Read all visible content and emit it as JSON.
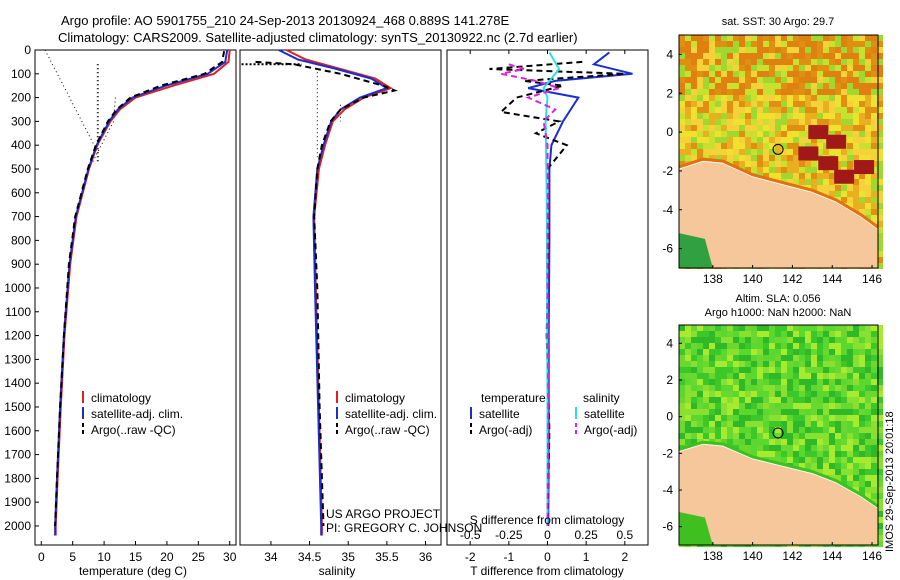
{
  "header": {
    "line1": "Argo profile: AO 5901755_210 24-Sep-2013 20130924_468 0.889S 141.278E",
    "line2": "Climatology: CARS2009. Satellite-adjusted climatology: synTS_20130922.nc (2.7d earlier)"
  },
  "footer": {
    "project": "US ARGO PROJECT",
    "pi": "PI: GREGORY C. JOHNSON",
    "stamp": "IMOS 29-Sep-2013 20:01:18"
  },
  "colors": {
    "climatology": "#e02020",
    "satellite": "#1a2fd0",
    "argo": "#000000",
    "sat_salinity": "#2de0e0",
    "argo_salinity": "#e020e0"
  },
  "chart_data": [
    {
      "type": "line",
      "id": "temperature",
      "xlabel": "temperature (deg C)",
      "ylabel": "depth",
      "xlim": [
        -1,
        31
      ],
      "ylim": [
        2080,
        0
      ],
      "xticks": [
        0,
        5,
        10,
        15,
        20,
        25,
        30
      ],
      "yticks": [
        0,
        100,
        200,
        300,
        400,
        500,
        600,
        700,
        800,
        900,
        1000,
        1100,
        1200,
        1300,
        1400,
        1500,
        1600,
        1700,
        1800,
        1900,
        2000
      ],
      "legend": [
        "climatology",
        "satellite-adj. clim.",
        "Argo(..raw -QC)"
      ],
      "series": [
        {
          "name": "climatology",
          "depth": [
            0,
            50,
            100,
            150,
            200,
            250,
            300,
            400,
            500,
            700,
            900,
            1200,
            1500,
            1800,
            2000,
            2040
          ],
          "values": [
            30,
            29.8,
            27.5,
            21,
            15,
            12.5,
            11,
            8.9,
            7.6,
            5.6,
            4.6,
            3.7,
            3.1,
            2.6,
            2.3,
            2.3
          ]
        },
        {
          "name": "satellite-adj. clim.",
          "depth": [
            0,
            50,
            100,
            150,
            200,
            250,
            300,
            400,
            500,
            700,
            900,
            1200,
            1500,
            1800,
            2000,
            2040
          ],
          "values": [
            29.6,
            29.3,
            26.5,
            19.8,
            14.5,
            12.2,
            10.8,
            8.8,
            7.5,
            5.5,
            4.5,
            3.6,
            3.0,
            2.5,
            2.2,
            2.2
          ]
        },
        {
          "name": "Argo(..raw -QC)",
          "depth": [
            5,
            50,
            100,
            150,
            200,
            250,
            300,
            400,
            500,
            700,
            900,
            1200,
            1500,
            1800,
            2000
          ],
          "values": [
            29.1,
            28.8,
            26,
            19,
            14.2,
            12,
            10.6,
            8.7,
            7.4,
            5.4,
            4.4,
            3.6,
            3.0,
            2.5,
            2.2
          ]
        }
      ]
    },
    {
      "type": "line",
      "id": "salinity",
      "xlabel": "salinity",
      "xlim": [
        33.6,
        36.2
      ],
      "ylim": [
        2080,
        0
      ],
      "xticks": [
        34,
        34.5,
        35,
        35.5,
        36
      ],
      "xtick_labels": [
        "34",
        "34.5",
        "35",
        "35.5",
        "36"
      ],
      "legend": [
        "climatology",
        "satellite-adj. clim.",
        "Argo(..raw -QC)"
      ],
      "series": [
        {
          "name": "climatology",
          "depth": [
            0,
            40,
            80,
            120,
            160,
            200,
            250,
            300,
            400,
            500,
            700,
            1000,
            1500,
            2000,
            2040
          ],
          "values": [
            34.2,
            34.45,
            34.9,
            35.35,
            35.55,
            35.2,
            34.95,
            34.8,
            34.7,
            34.62,
            34.56,
            34.58,
            34.62,
            34.66,
            34.66
          ]
        },
        {
          "name": "satellite-adj. clim.",
          "depth": [
            0,
            40,
            80,
            120,
            160,
            200,
            250,
            300,
            400,
            500,
            700,
            1000,
            1500,
            2000,
            2040
          ],
          "values": [
            34.1,
            34.35,
            34.85,
            35.3,
            35.5,
            35.15,
            34.9,
            34.78,
            34.68,
            34.6,
            34.55,
            34.57,
            34.61,
            34.65,
            34.65
          ]
        },
        {
          "name": "Argo(..raw -QC)",
          "depth": [
            50,
            60,
            100,
            150,
            170,
            200,
            250,
            300,
            400,
            500,
            700,
            1000,
            1500,
            2000
          ],
          "values": [
            33.8,
            34.3,
            34.9,
            35.45,
            35.6,
            35.2,
            34.9,
            34.77,
            34.66,
            34.6,
            34.56,
            34.6,
            34.63,
            34.68
          ]
        }
      ]
    },
    {
      "type": "line",
      "id": "difference",
      "xlabel": "T difference from climatology",
      "xlabel_s": "S difference from climatology",
      "xlim": [
        -2.6,
        2.6
      ],
      "ylim": [
        2080,
        0
      ],
      "xticks": [
        -2,
        -1,
        0,
        1,
        2
      ],
      "xticks_s": [
        -0.5,
        -0.25,
        0,
        0.25,
        0.5
      ],
      "xtick_labels_s": [
        "-0.5",
        "-0.25",
        "0",
        "0.25",
        "0.5"
      ],
      "legend_t_title": "temperature",
      "legend_s_title": "salinity",
      "legend": [
        "satellite",
        "Argo(-adj)",
        "satellite",
        "Argo(-adj)"
      ],
      "series": [
        {
          "name": "T satellite",
          "depth": [
            10,
            60,
            100,
            130,
            160,
            200,
            250,
            300,
            400,
            500,
            800,
            1200,
            1600,
            2000
          ],
          "values": [
            1.6,
            1.2,
            2.2,
            0.2,
            -0.5,
            0.8,
            0.6,
            0.4,
            0.1,
            0.05,
            0.05,
            0.03,
            0.03,
            0.02
          ]
        },
        {
          "name": "T Argo(-adj)",
          "depth": [
            50,
            80,
            100,
            130,
            150,
            200,
            260,
            300,
            350,
            400,
            500,
            800,
            1200,
            1600,
            2000
          ],
          "values": [
            0.9,
            -1.5,
            2.0,
            -0.6,
            0.4,
            -0.8,
            -1.2,
            0.3,
            -0.3,
            0.5,
            0.0,
            0.02,
            -0.02,
            0.05,
            0.0
          ]
        },
        {
          "name": "S satellite",
          "depth": [
            10,
            80,
            120,
            160,
            200,
            300,
            400,
            600,
            1000,
            1500,
            2000
          ],
          "values": [
            0.05,
            0.3,
            0.1,
            -0.1,
            0.0,
            -0.05,
            -0.04,
            -0.02,
            -0.01,
            0.0,
            0.0
          ]
        },
        {
          "name": "S Argo(-adj)",
          "depth": [
            60,
            80,
            100,
            130,
            160,
            200,
            250,
            300,
            400,
            600,
            1000,
            1500,
            2000
          ],
          "values": [
            -1.0,
            -0.6,
            -1.2,
            -0.3,
            0.3,
            -0.5,
            0.2,
            -0.1,
            0.0,
            0.01,
            0.0,
            0.02,
            0.0
          ]
        }
      ]
    },
    {
      "type": "heatmap",
      "id": "sst_map",
      "title": "sat. SST: 30 Argo: 29.7",
      "xlim": [
        136.3,
        146.3
      ],
      "ylim": [
        -7,
        5
      ],
      "xticks": [
        138,
        140,
        142,
        144,
        146
      ],
      "yticks": [
        -6,
        -4,
        -2,
        0,
        2,
        4
      ],
      "argo_position": [
        141.278,
        -0.889
      ]
    },
    {
      "type": "heatmap",
      "id": "sla_map",
      "title_line1": "Altim. SLA: 0.056",
      "title_line2": "Argo h1000: NaN h2000: NaN",
      "xlim": [
        136.3,
        146.3
      ],
      "ylim": [
        -7,
        5
      ],
      "xticks": [
        138,
        140,
        142,
        144,
        146
      ],
      "yticks": [
        -6,
        -4,
        -2,
        0,
        2,
        4
      ],
      "argo_position": [
        141.278,
        -0.889
      ]
    }
  ]
}
